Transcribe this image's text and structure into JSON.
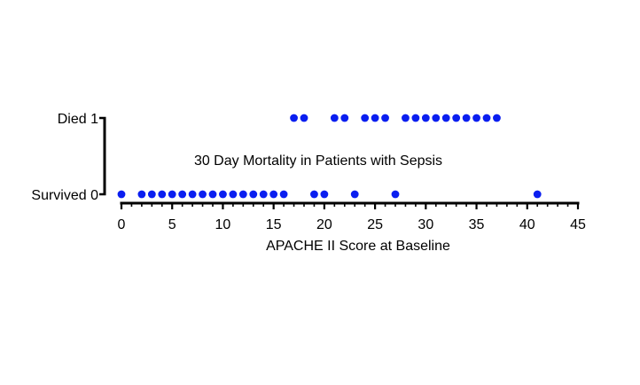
{
  "chart_data": {
    "type": "scatter",
    "title": "30 Day Mortality in Patients with Sepsis",
    "xlabel": "APACHE II Score at Baseline",
    "ylabel": "",
    "xlim": [
      0,
      45
    ],
    "ylim": [
      0,
      1
    ],
    "x_ticks": [
      0,
      5,
      10,
      15,
      20,
      25,
      30,
      35,
      40,
      45
    ],
    "y_ticks": [
      {
        "value": 0,
        "label": "Survived 0"
      },
      {
        "value": 1,
        "label": "Died 1"
      }
    ],
    "grid": false,
    "legend": "none",
    "marker_color": "#0a1ef0",
    "points": [
      {
        "x": 0,
        "y": 0
      },
      {
        "x": 2,
        "y": 0
      },
      {
        "x": 3,
        "y": 0
      },
      {
        "x": 4,
        "y": 0
      },
      {
        "x": 5,
        "y": 0
      },
      {
        "x": 6,
        "y": 0
      },
      {
        "x": 7,
        "y": 0
      },
      {
        "x": 8,
        "y": 0
      },
      {
        "x": 9,
        "y": 0
      },
      {
        "x": 10,
        "y": 0
      },
      {
        "x": 11,
        "y": 0
      },
      {
        "x": 12,
        "y": 0
      },
      {
        "x": 13,
        "y": 0
      },
      {
        "x": 14,
        "y": 0
      },
      {
        "x": 15,
        "y": 0
      },
      {
        "x": 16,
        "y": 0
      },
      {
        "x": 19,
        "y": 0
      },
      {
        "x": 20,
        "y": 0
      },
      {
        "x": 23,
        "y": 0
      },
      {
        "x": 27,
        "y": 0
      },
      {
        "x": 41,
        "y": 0
      },
      {
        "x": 17,
        "y": 1
      },
      {
        "x": 18,
        "y": 1
      },
      {
        "x": 21,
        "y": 1
      },
      {
        "x": 22,
        "y": 1
      },
      {
        "x": 24,
        "y": 1
      },
      {
        "x": 25,
        "y": 1
      },
      {
        "x": 26,
        "y": 1
      },
      {
        "x": 28,
        "y": 1
      },
      {
        "x": 29,
        "y": 1
      },
      {
        "x": 30,
        "y": 1
      },
      {
        "x": 31,
        "y": 1
      },
      {
        "x": 32,
        "y": 1
      },
      {
        "x": 33,
        "y": 1
      },
      {
        "x": 34,
        "y": 1
      },
      {
        "x": 35,
        "y": 1
      },
      {
        "x": 36,
        "y": 1
      },
      {
        "x": 37,
        "y": 1
      }
    ]
  }
}
